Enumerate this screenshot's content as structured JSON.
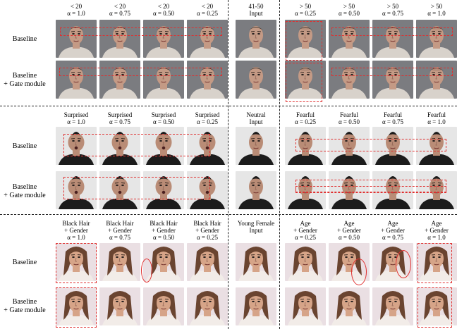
{
  "sections": [
    {
      "headers_left": [
        [
          "< 20",
          "α = 1.0"
        ],
        [
          "< 20",
          "α = 0.75"
        ],
        [
          "< 20",
          "α = 0.50"
        ],
        [
          "< 20",
          "α = 0.25"
        ]
      ],
      "header_input": [
        "41-50",
        "Input"
      ],
      "headers_right": [
        [
          "> 50",
          "α = 0.25"
        ],
        [
          "> 50",
          "α = 0.50"
        ],
        [
          "> 50",
          "α = 0.75"
        ],
        [
          "> 50",
          "α = 1.0"
        ]
      ],
      "rows": [
        [
          "Baseline"
        ],
        [
          "Baseline",
          "+ Gate module"
        ]
      ],
      "palette": {
        "bg": "#7b7c80",
        "skin": "#c49a85",
        "hair": "#3c3631",
        "shirt": "#d8d2cb"
      }
    },
    {
      "headers_left": [
        [
          "Surprised",
          "α = 1.0"
        ],
        [
          "Surprised",
          "α = 0.75"
        ],
        [
          "Surprised",
          "α = 0.50"
        ],
        [
          "Surprised",
          "α = 0.25"
        ]
      ],
      "header_input": [
        "Neutral",
        "Input"
      ],
      "headers_right": [
        [
          "Fearful",
          "α = 0.25"
        ],
        [
          "Fearful",
          "α = 0.50"
        ],
        [
          "Fearful",
          "α = 0.75"
        ],
        [
          "Fearful",
          "α = 1.0"
        ]
      ],
      "rows": [
        [
          "Baseline"
        ],
        [
          "Baseline",
          "+ Gate module"
        ]
      ],
      "palette": {
        "bg": "#e6e6e6",
        "skin": "#b98c76",
        "hair": "#1d1b1a",
        "shirt": "#1c1c1c"
      }
    },
    {
      "headers_left": [
        [
          "Black Hair",
          "+ Gender",
          "α = 1.0"
        ],
        [
          "Black Hair",
          "+ Gender",
          "α = 0.75"
        ],
        [
          "Black Hair",
          "+ Gender",
          "α = 0.50"
        ],
        [
          "Black Hair",
          "+ Gender",
          "α = 0.25"
        ]
      ],
      "header_input": [
        "Young Female",
        "Input"
      ],
      "headers_right": [
        [
          "Age",
          "+ Gender",
          "α = 0.25"
        ],
        [
          "Age",
          "+ Gender",
          "α = 0.50"
        ],
        [
          "Age",
          "+ Gender",
          "α = 0.75"
        ],
        [
          "Age",
          "+ Gender",
          "α = 1.0"
        ]
      ],
      "rows": [
        [
          "Baseline"
        ],
        [
          "Baseline",
          "+ Gate module"
        ]
      ],
      "palette": {
        "bg": "#eadfe3",
        "skin": "#d6a488",
        "hair": "#6a4430",
        "shirt": "#f2ece8"
      }
    }
  ]
}
